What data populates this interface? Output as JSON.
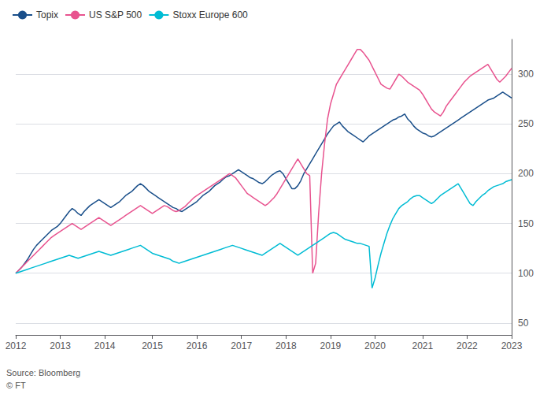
{
  "chart_data": {
    "type": "line",
    "categories": [
      "2012",
      null,
      null,
      null,
      null,
      null,
      null,
      null,
      null,
      null,
      null,
      null,
      null,
      null,
      null,
      "2013",
      null,
      null,
      null,
      null,
      null,
      null,
      null,
      null,
      null,
      null,
      null,
      null,
      null,
      null,
      "2014",
      null,
      null,
      null,
      null,
      null,
      null,
      null,
      null,
      null,
      null,
      null,
      null,
      null,
      null,
      null,
      "2015",
      null,
      null,
      null,
      null,
      null,
      null,
      null,
      null,
      null,
      null,
      null,
      null,
      null,
      null,
      "2016",
      null,
      null,
      null,
      null,
      null,
      null,
      null,
      null,
      null,
      null,
      null,
      null,
      null,
      null,
      "2017",
      null,
      null,
      null,
      null,
      null,
      null,
      null,
      null,
      null,
      null,
      null,
      null,
      null,
      null,
      "2018",
      null,
      null,
      null,
      null,
      null,
      null,
      null,
      null,
      null,
      null,
      null,
      null,
      null,
      null,
      "2019",
      null,
      null,
      null,
      null,
      null,
      null,
      null,
      null,
      null,
      null,
      null,
      null,
      null,
      null,
      "2020",
      null,
      null,
      null,
      null,
      null,
      null,
      null,
      null,
      null,
      null,
      null,
      null,
      null,
      null,
      null,
      "2021",
      null,
      null,
      null,
      null,
      null,
      null,
      null,
      null,
      null,
      null,
      null,
      null,
      null,
      null,
      "2022",
      null,
      null,
      null,
      null,
      null,
      null,
      null,
      null,
      null,
      null,
      null,
      null,
      null,
      null,
      "2023"
    ],
    "series": [
      {
        "name": "Topix",
        "color": "#1a4f8a",
        "values": [
          100,
          103,
          106,
          110,
          114,
          119,
          124,
          128,
          131,
          134,
          137,
          140,
          143,
          145,
          147,
          150,
          154,
          158,
          162,
          165,
          163,
          160,
          158,
          162,
          165,
          168,
          170,
          172,
          174,
          172,
          170,
          168,
          166,
          168,
          170,
          172,
          175,
          178,
          180,
          182,
          185,
          188,
          190,
          188,
          185,
          182,
          180,
          178,
          176,
          174,
          172,
          170,
          168,
          166,
          165,
          163,
          162,
          164,
          166,
          168,
          170,
          172,
          175,
          178,
          180,
          182,
          185,
          188,
          190,
          192,
          195,
          197,
          198,
          200,
          202,
          204,
          202,
          200,
          198,
          196,
          195,
          193,
          191,
          190,
          192,
          195,
          198,
          200,
          202,
          203,
          200,
          195,
          190,
          185,
          185,
          188,
          193,
          200,
          205,
          210,
          215,
          220,
          225,
          230,
          235,
          240,
          244,
          248,
          250,
          252,
          248,
          245,
          242,
          240,
          238,
          236,
          234,
          232,
          235,
          238,
          240,
          242,
          244,
          246,
          248,
          250,
          252,
          254,
          255,
          257,
          258,
          260,
          255,
          252,
          248,
          245,
          243,
          241,
          240,
          238,
          237,
          238,
          240,
          242,
          244,
          246,
          248,
          250,
          252,
          254,
          256,
          258,
          260,
          262,
          264,
          266,
          268,
          270,
          272,
          274,
          275,
          276,
          278,
          280,
          282,
          280,
          278,
          276
        ]
      },
      {
        "name": "US S&P 500",
        "color": "#e8538f",
        "values": [
          100,
          103,
          106,
          109,
          112,
          115,
          118,
          121,
          124,
          127,
          130,
          133,
          136,
          138,
          140,
          142,
          144,
          146,
          148,
          150,
          148,
          146,
          144,
          146,
          148,
          150,
          152,
          154,
          156,
          154,
          152,
          150,
          148,
          150,
          152,
          154,
          156,
          158,
          160,
          162,
          164,
          166,
          168,
          166,
          164,
          162,
          160,
          162,
          164,
          166,
          168,
          167,
          165,
          163,
          162,
          163,
          165,
          167,
          170,
          173,
          176,
          178,
          180,
          182,
          184,
          186,
          188,
          190,
          192,
          194,
          196,
          198,
          200,
          198,
          196,
          192,
          188,
          184,
          180,
          178,
          176,
          174,
          172,
          170,
          168,
          170,
          173,
          176,
          180,
          185,
          190,
          195,
          200,
          205,
          210,
          215,
          210,
          205,
          200,
          198,
          100,
          110,
          160,
          200,
          230,
          255,
          270,
          280,
          290,
          295,
          300,
          305,
          310,
          315,
          320,
          325,
          325,
          322,
          318,
          314,
          308,
          302,
          296,
          290,
          288,
          286,
          285,
          290,
          295,
          300,
          298,
          295,
          292,
          290,
          288,
          286,
          284,
          280,
          275,
          270,
          265,
          262,
          260,
          258,
          262,
          268,
          272,
          276,
          280,
          284,
          288,
          292,
          295,
          298,
          300,
          302,
          304,
          306,
          308,
          310,
          305,
          300,
          295,
          292,
          295,
          298,
          302,
          306
        ]
      },
      {
        "name": "Stoxx Europe 600",
        "color": "#00bcd4",
        "values": [
          100,
          101,
          102,
          103,
          104,
          105,
          106,
          107,
          108,
          109,
          110,
          111,
          112,
          113,
          114,
          115,
          116,
          117,
          118,
          117,
          116,
          115,
          116,
          117,
          118,
          119,
          120,
          121,
          122,
          121,
          120,
          119,
          118,
          119,
          120,
          121,
          122,
          123,
          124,
          125,
          126,
          127,
          128,
          126,
          124,
          122,
          120,
          119,
          118,
          117,
          116,
          115,
          114,
          112,
          111,
          110,
          111,
          112,
          113,
          114,
          115,
          116,
          117,
          118,
          119,
          120,
          121,
          122,
          123,
          124,
          125,
          126,
          127,
          128,
          127,
          126,
          125,
          124,
          123,
          122,
          121,
          120,
          119,
          118,
          120,
          122,
          124,
          126,
          128,
          130,
          128,
          126,
          124,
          122,
          120,
          118,
          120,
          122,
          124,
          126,
          128,
          130,
          132,
          134,
          136,
          138,
          140,
          141,
          140,
          138,
          136,
          134,
          133,
          132,
          131,
          130,
          130,
          129,
          128,
          127,
          85,
          95,
          108,
          120,
          130,
          140,
          148,
          155,
          160,
          165,
          168,
          170,
          172,
          175,
          177,
          178,
          178,
          176,
          174,
          172,
          170,
          172,
          175,
          178,
          180,
          182,
          184,
          186,
          188,
          190,
          185,
          180,
          175,
          170,
          168,
          172,
          175,
          178,
          180,
          183,
          185,
          187,
          188,
          189,
          190,
          192,
          193,
          194
        ]
      }
    ],
    "ylim": [
      38,
      335
    ],
    "yticks": [
      50,
      100,
      150,
      200,
      250,
      300
    ],
    "grid": true,
    "legend": "top-left",
    "annotations": [
      "Source: Bloomberg",
      "© FT"
    ]
  }
}
